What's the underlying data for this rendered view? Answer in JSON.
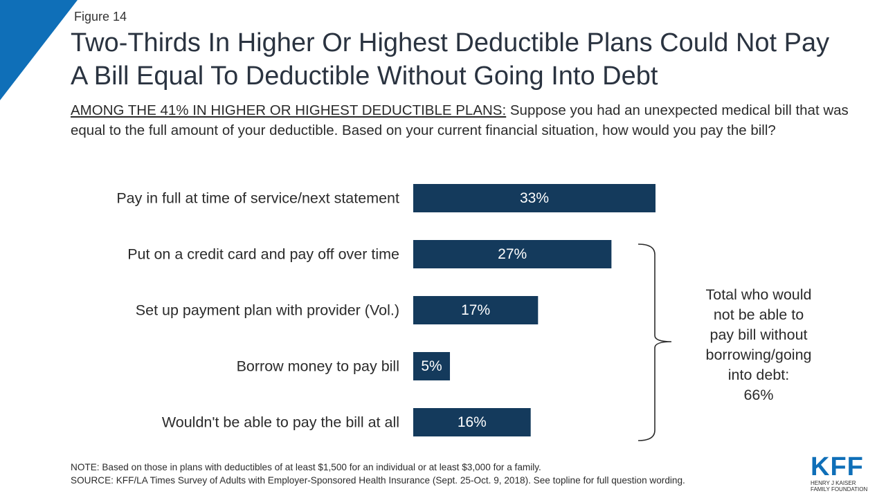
{
  "header": {
    "figure_label": "Figure 14",
    "title": "Two-Thirds In Higher Or Highest Deductible Plans Could Not Pay A Bill Equal To Deductible Without Going Into Debt",
    "subtitle_lead": "AMONG THE 41% IN HIGHER OR HIGHEST DEDUCTIBLE PLANS:",
    "subtitle_body": " Suppose you had an unexpected medical bill that was equal to the full amount of your deductible. Based on your current financial situation, how would you pay the bill?"
  },
  "chart_data": {
    "type": "bar",
    "orientation": "horizontal",
    "categories": [
      "Pay in full at time of service/next statement",
      "Put on a credit card and pay off over time",
      "Set up payment plan with provider (Vol.)",
      "Borrow money to pay bill",
      "Wouldn't be able to pay the bill at all"
    ],
    "values": [
      33,
      27,
      17,
      5,
      16
    ],
    "value_labels": [
      "33%",
      "27%",
      "17%",
      "5%",
      "16%"
    ],
    "bar_color": "#143a5c",
    "grid": false,
    "xlim": [
      0,
      33
    ],
    "annotation": {
      "lines": [
        "Total who would",
        "not be able to",
        "pay bill without",
        "borrowing/going",
        "into debt:",
        "66%"
      ],
      "spans_categories": [
        1,
        4
      ]
    }
  },
  "footer": {
    "note": "NOTE: Based on those in plans with deductibles of at least $1,500 for an individual or at least $3,000 for a family.",
    "source": "SOURCE: KFF/LA Times Survey  of Adults with Employer-Sponsored Health Insurance  (Sept. 25-Oct. 9, 2018). See topline for full question wording."
  },
  "logo": {
    "mark": "KFF",
    "org_line1": "HENRY J KAISER",
    "org_line2": "FAMILY FOUNDATION"
  },
  "colors": {
    "accent": "#0f6fb8",
    "bar": "#143a5c"
  }
}
